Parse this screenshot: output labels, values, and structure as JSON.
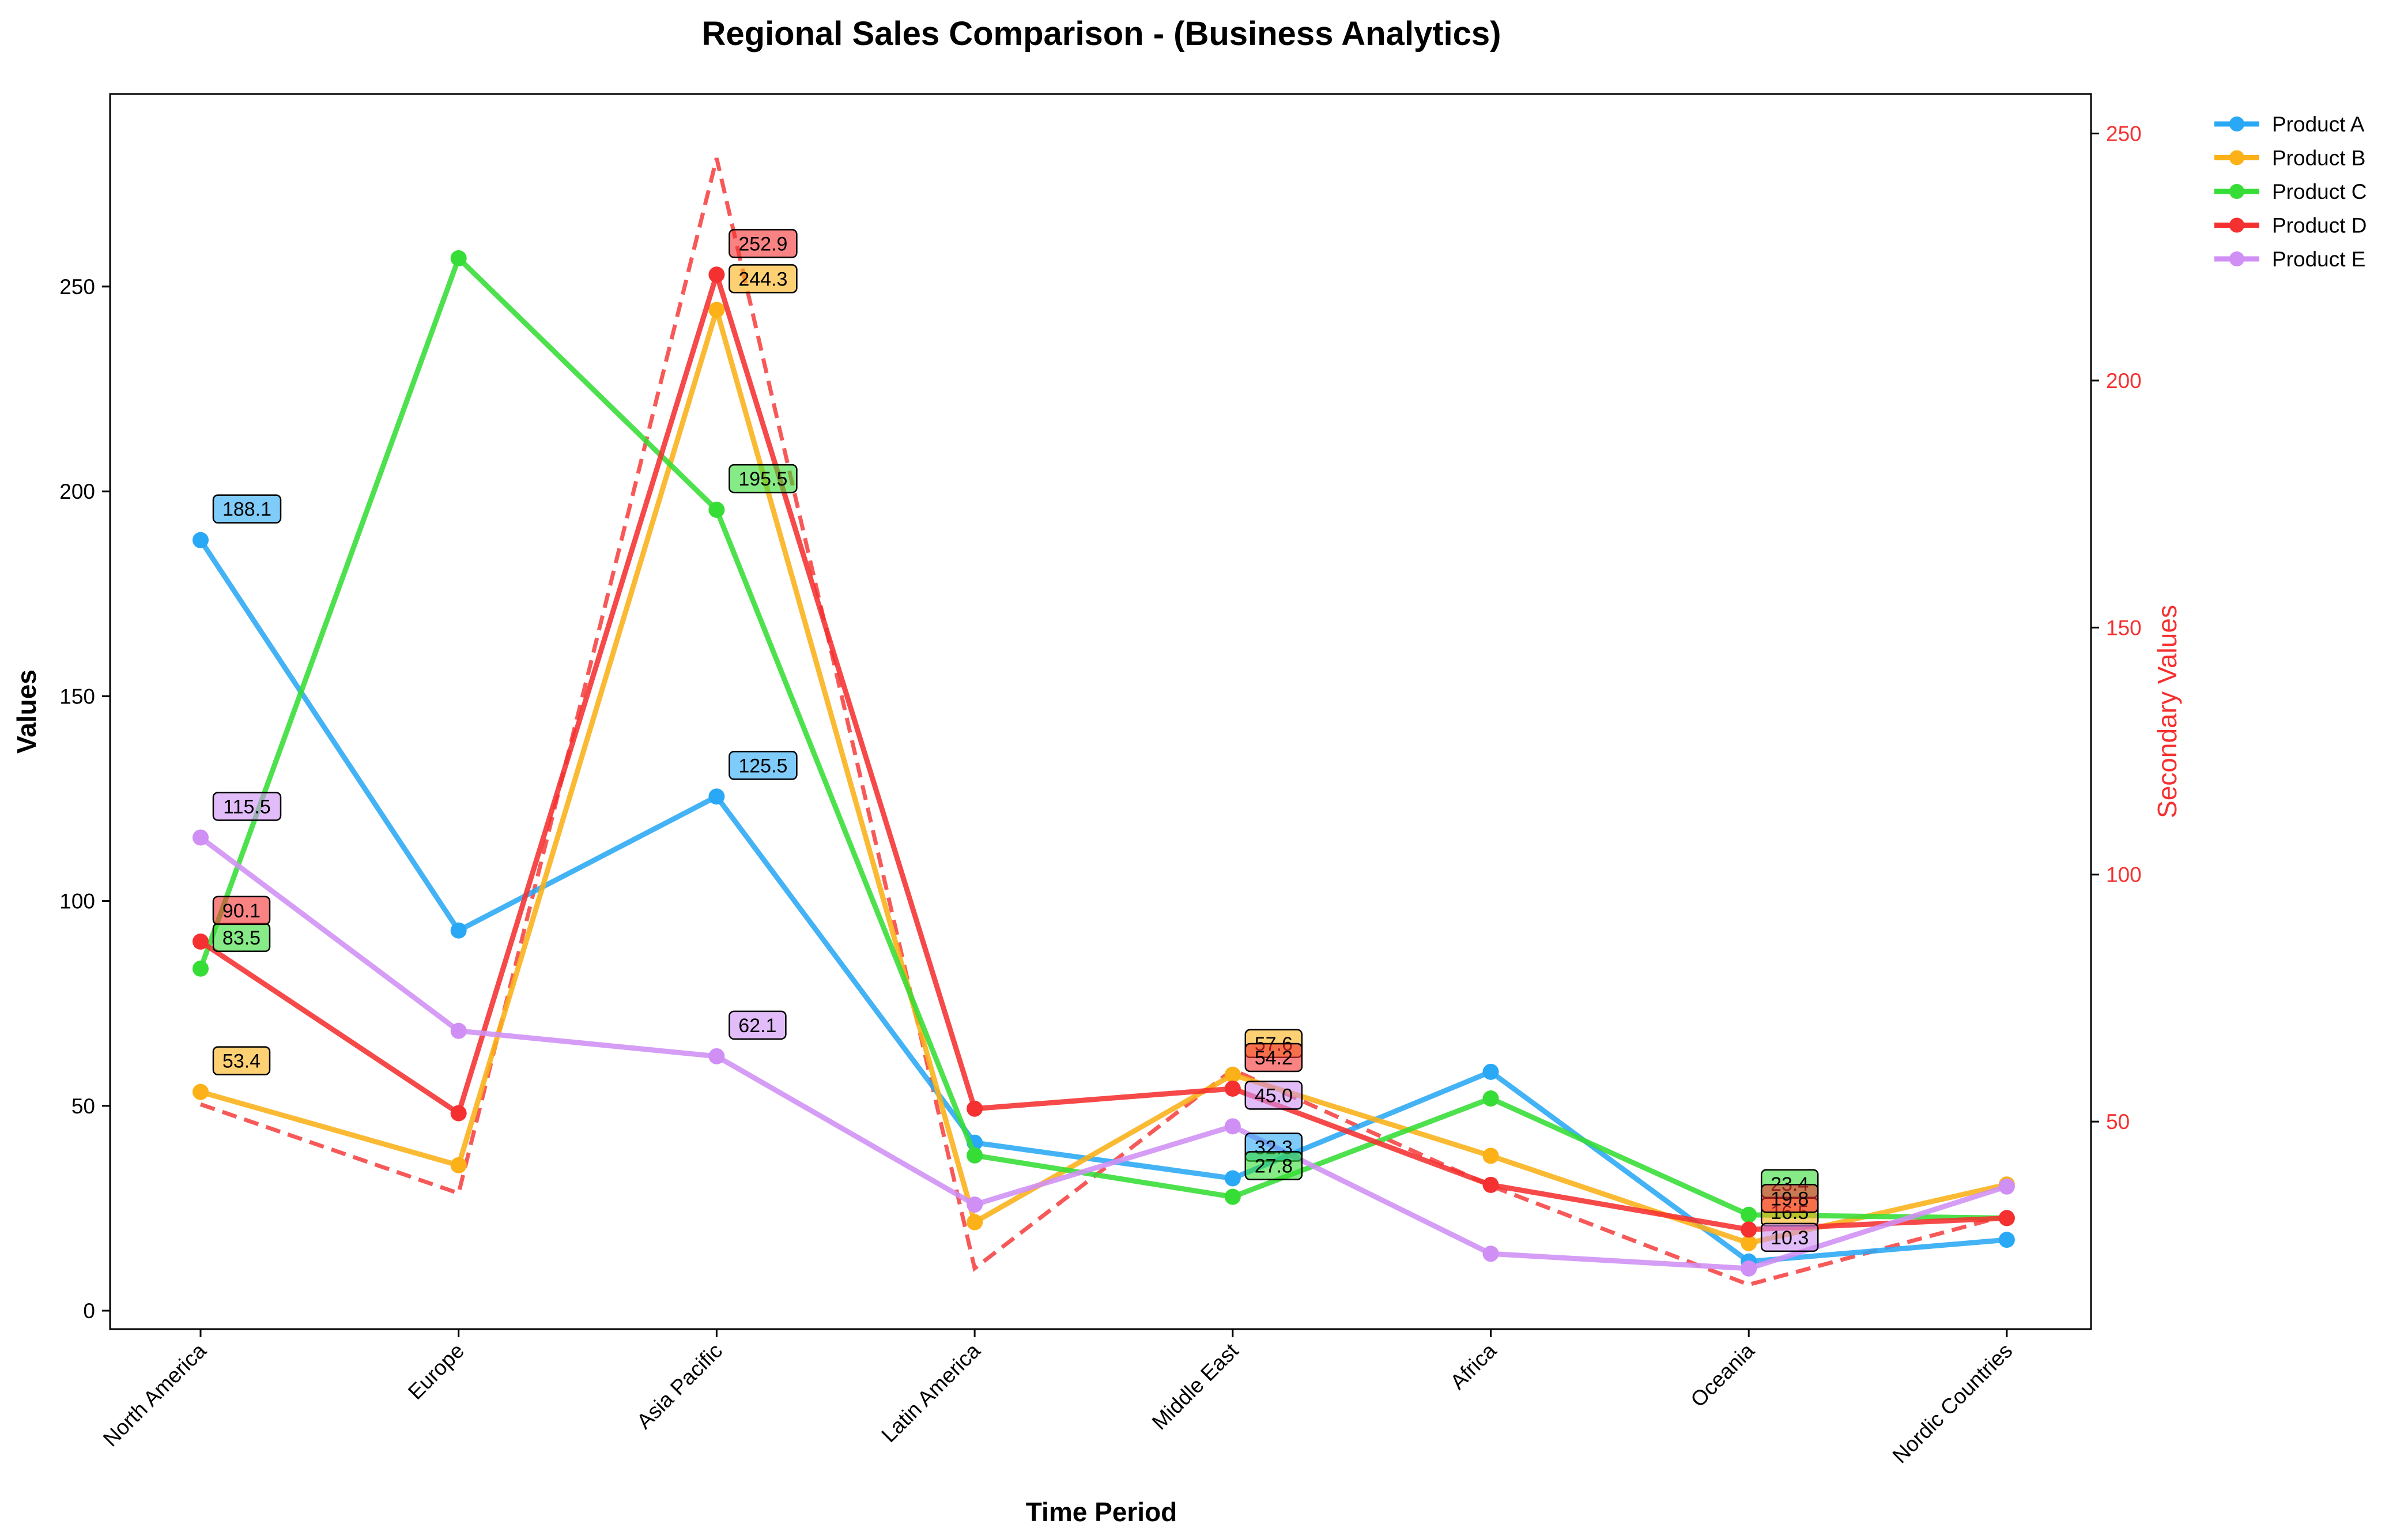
{
  "chart_data": {
    "type": "line",
    "title": "Regional Sales Comparison - (Business Analytics)",
    "xlabel": "Time Period",
    "ylabel": "Values",
    "ylabel_secondary": "Secondary Values",
    "categories": [
      "North America",
      "Europe",
      "Asia Pacific",
      "Latin America",
      "Middle East",
      "Africa",
      "Oceania",
      "Nordic Countries"
    ],
    "ylim": [
      -4.5,
      297
    ],
    "yticks": [
      0,
      50,
      100,
      150,
      200,
      250
    ],
    "ylim_secondary": [
      8,
      258
    ],
    "yticks_secondary": [
      50,
      100,
      150,
      200,
      250
    ],
    "grid": false,
    "legend_position": "outside top-right",
    "series": [
      {
        "name": "Product A",
        "color": "#29a8f5",
        "values": [
          188.1,
          92.8,
          125.5,
          41.0,
          32.3,
          58.3,
          12.0,
          17.3
        ],
        "labeled": [
          0,
          2,
          4
        ]
      },
      {
        "name": "Product B",
        "color": "#fbb117",
        "values": [
          53.4,
          35.5,
          244.3,
          21.6,
          57.6,
          37.8,
          16.5,
          30.8
        ],
        "labeled": [
          0,
          2,
          4,
          6
        ]
      },
      {
        "name": "Product C",
        "color": "#36dd36",
        "values": [
          83.5,
          256.9,
          195.5,
          37.9,
          27.8,
          51.8,
          23.4,
          22.6
        ],
        "labeled": [
          0,
          2,
          4,
          6
        ]
      },
      {
        "name": "Product D",
        "color": "#f53030",
        "values": [
          90.1,
          48.2,
          252.9,
          49.3,
          54.2,
          30.7,
          19.8,
          22.6
        ],
        "labeled": [
          0,
          2,
          4,
          6
        ]
      },
      {
        "name": "Product E",
        "color": "#cf8ff5",
        "values": [
          115.5,
          68.3,
          62.1,
          25.9,
          45.0,
          13.9,
          10.3,
          30.3
        ],
        "labeled": [
          0,
          2,
          4,
          6
        ]
      }
    ],
    "secondary_series": {
      "color": "#f53030",
      "style": "dashed",
      "values": [
        53.5,
        35.5,
        245.0,
        20.3,
        60.5,
        37.0,
        17.0,
        31.0
      ]
    }
  }
}
